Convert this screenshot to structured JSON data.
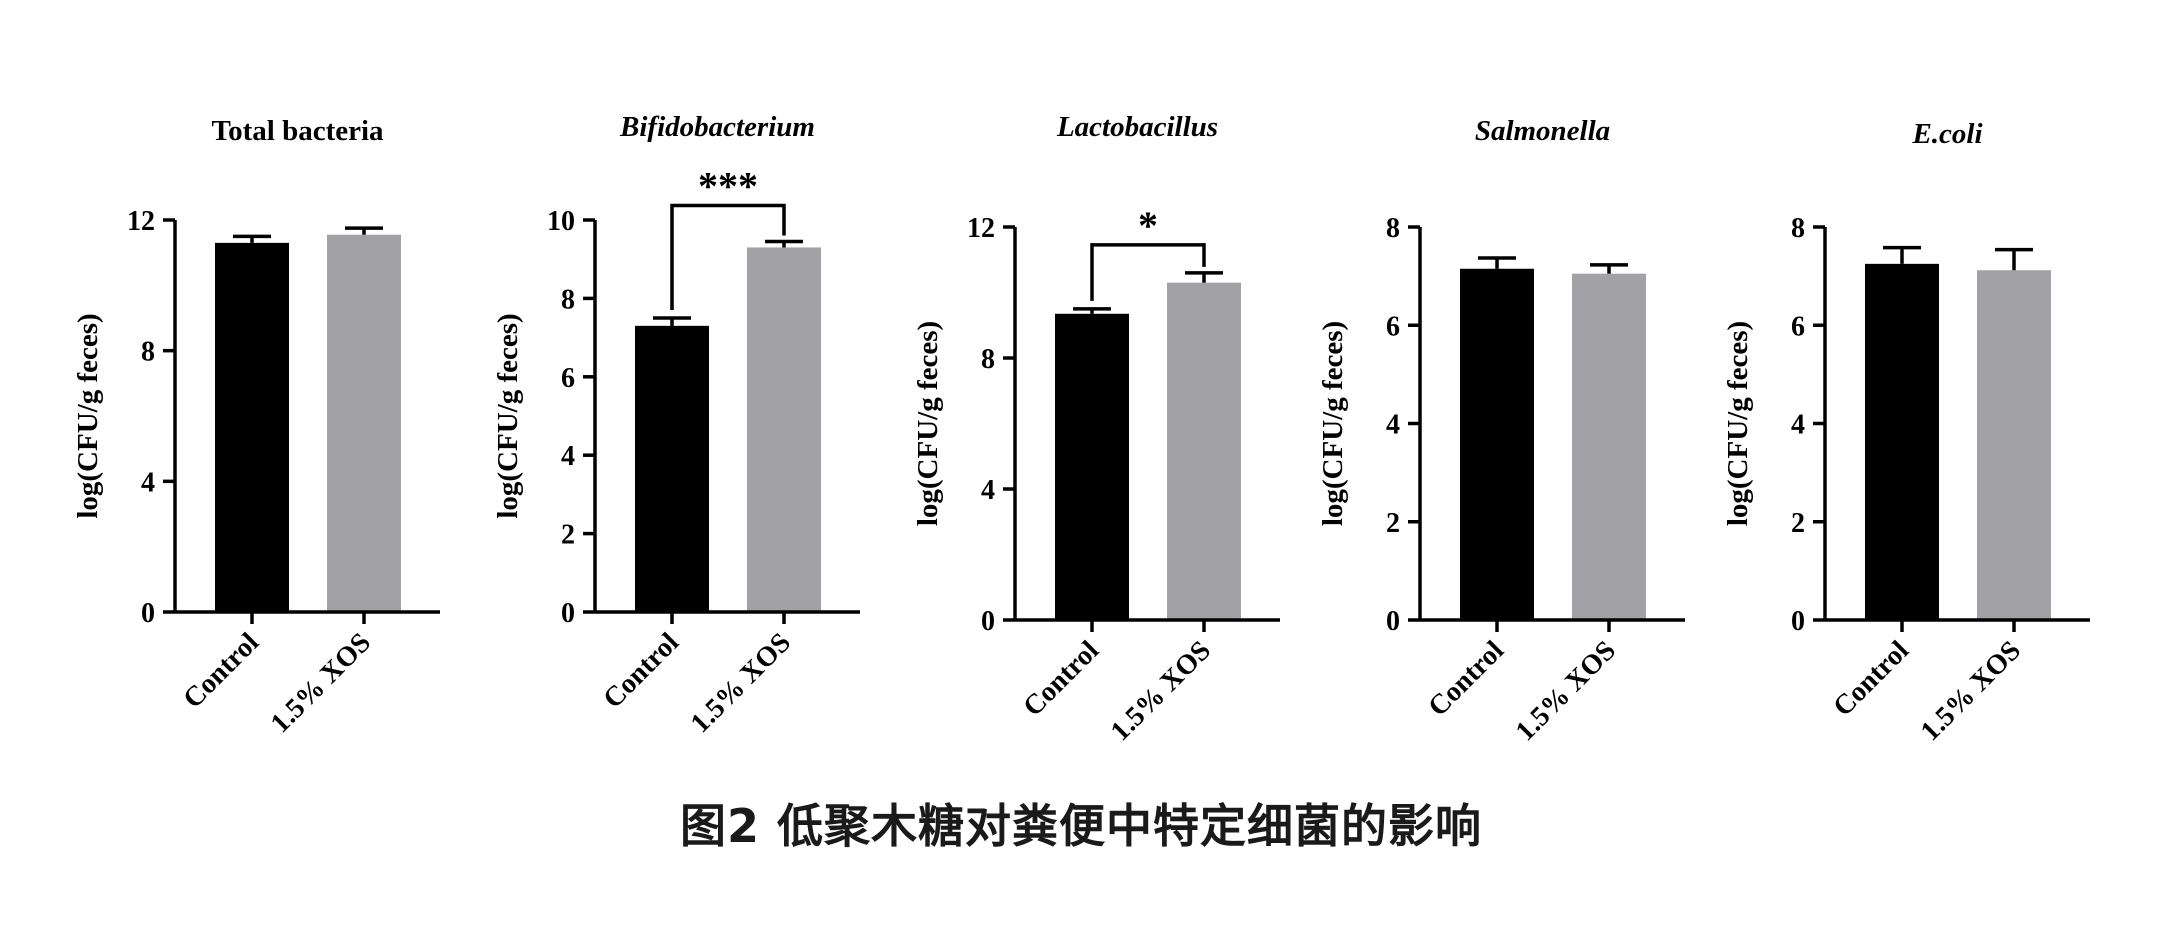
{
  "figure_caption": "图2 低聚木糖对粪便中特定细菌的影响",
  "colors": {
    "control": "#000000",
    "xos": "#a2a2a6",
    "axis": "#000000"
  },
  "chart_data": [
    {
      "type": "bar",
      "title": "Total bacteria",
      "title_italic": false,
      "categories": [
        "Control",
        "1.5% XOS"
      ],
      "values": [
        11.3,
        11.55
      ],
      "errors": [
        0.2,
        0.2
      ],
      "ylabel": "log(CFU/g feces)",
      "ylim": [
        0,
        12
      ],
      "yticks": [
        0,
        4,
        8,
        12
      ],
      "significance": ""
    },
    {
      "type": "bar",
      "title": "Bifidobacterium",
      "title_italic": true,
      "categories": [
        "Control",
        "1.5% XOS"
      ],
      "values": [
        7.3,
        9.3
      ],
      "errors": [
        0.2,
        0.15
      ],
      "ylabel": "log(CFU/g feces)",
      "ylim": [
        0,
        10
      ],
      "yticks": [
        0,
        2,
        4,
        6,
        8,
        10
      ],
      "significance": "***"
    },
    {
      "type": "bar",
      "title": "Lactobacillus",
      "title_italic": true,
      "categories": [
        "Control",
        "1.5% XOS"
      ],
      "values": [
        9.35,
        10.3
      ],
      "errors": [
        0.15,
        0.3
      ],
      "ylabel": "log(CFU/g feces)",
      "ylim": [
        0,
        12
      ],
      "yticks": [
        0,
        4,
        8,
        12
      ],
      "significance": "*"
    },
    {
      "type": "bar",
      "title": "Salmonella",
      "title_italic": true,
      "categories": [
        "Control",
        "1.5% XOS"
      ],
      "values": [
        7.15,
        7.05
      ],
      "errors": [
        0.22,
        0.18
      ],
      "ylabel": "log(CFU/g feces)",
      "ylim": [
        0,
        8
      ],
      "yticks": [
        0,
        2,
        4,
        6,
        8
      ],
      "significance": ""
    },
    {
      "type": "bar",
      "title": "E.coli",
      "title_italic": true,
      "categories": [
        "Control",
        "1.5% XOS"
      ],
      "values": [
        7.25,
        7.12
      ],
      "errors": [
        0.33,
        0.42
      ],
      "ylabel": "log(CFU/g feces)",
      "ylim": [
        0,
        8
      ],
      "yticks": [
        0,
        2,
        4,
        6,
        8
      ],
      "significance": ""
    }
  ]
}
